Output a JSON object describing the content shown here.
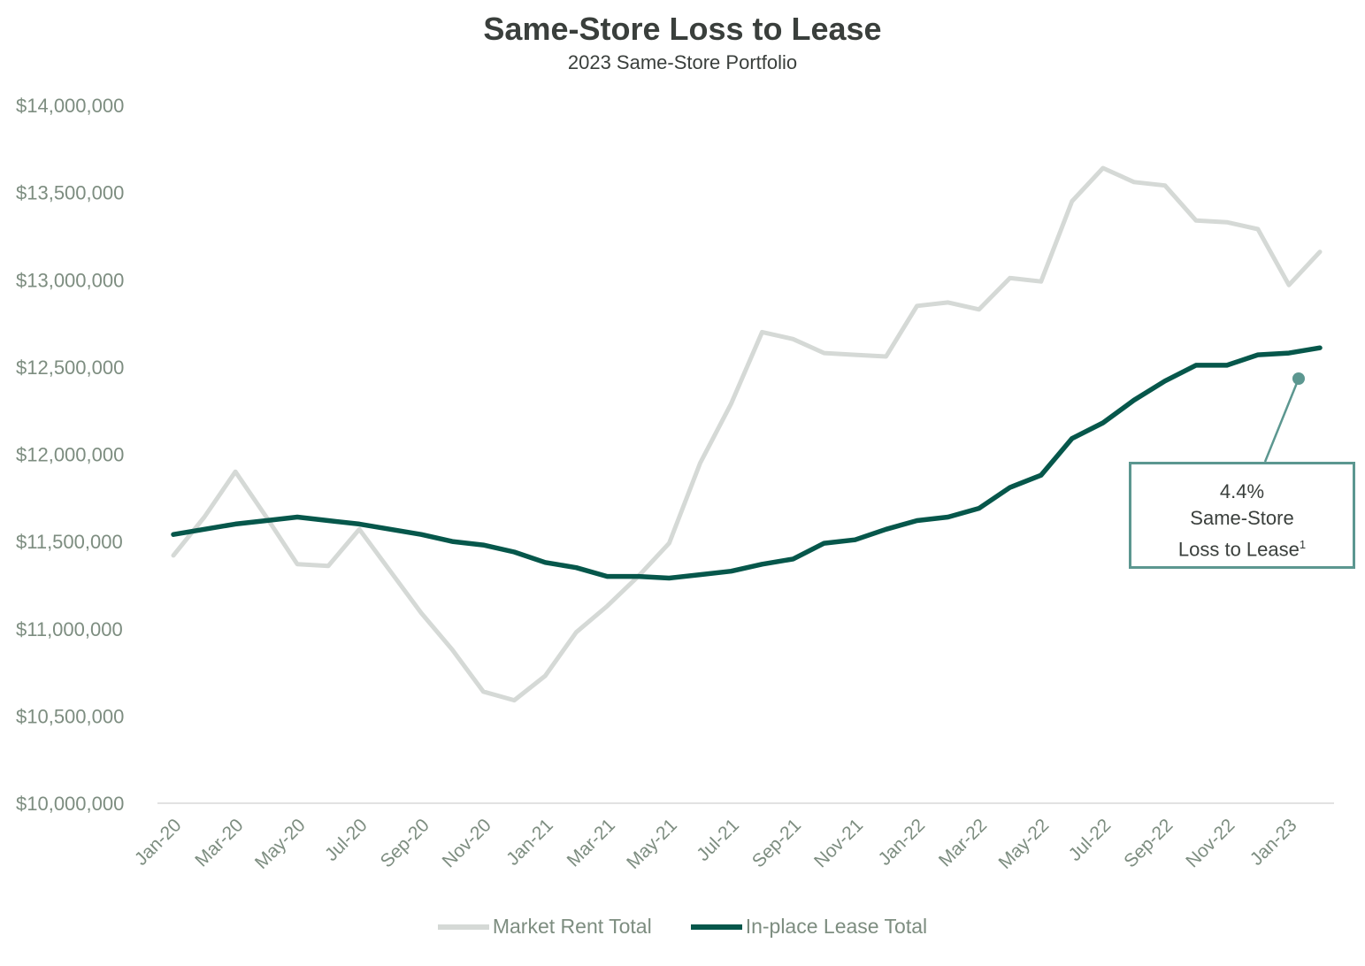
{
  "title": "Same-Store Loss to Lease",
  "subtitle": "2023 Same-Store Portfolio",
  "chart_data": {
    "type": "line",
    "title": "Same-Store Loss to Lease",
    "subtitle": "2023 Same-Store Portfolio",
    "xlabel": "",
    "ylabel": "",
    "ylim": [
      10000000,
      14000000
    ],
    "y_ticks": [
      "$10,000,000",
      "$10,500,000",
      "$11,000,000",
      "$11,500,000",
      "$12,000,000",
      "$12,500,000",
      "$13,000,000",
      "$13,500,000",
      "$14,000,000"
    ],
    "x_tick_labels": [
      "Jan-20",
      "Mar-20",
      "May-20",
      "Jul-20",
      "Sep-20",
      "Nov-20",
      "Jan-21",
      "Mar-21",
      "May-21",
      "Jul-21",
      "Sep-21",
      "Nov-21",
      "Jan-22",
      "Mar-22",
      "May-22",
      "Jul-22",
      "Sep-22",
      "Nov-22",
      "Jan-23"
    ],
    "x": [
      "Jan-20",
      "Feb-20",
      "Mar-20",
      "Apr-20",
      "May-20",
      "Jun-20",
      "Jul-20",
      "Aug-20",
      "Sep-20",
      "Oct-20",
      "Nov-20",
      "Dec-20",
      "Jan-21",
      "Feb-21",
      "Mar-21",
      "Apr-21",
      "May-21",
      "Jun-21",
      "Jul-21",
      "Aug-21",
      "Sep-21",
      "Oct-21",
      "Nov-21",
      "Dec-21",
      "Jan-22",
      "Feb-22",
      "Mar-22",
      "Apr-22",
      "May-22",
      "Jun-22",
      "Jul-22",
      "Aug-22",
      "Sep-22",
      "Oct-22",
      "Nov-22",
      "Dec-22",
      "Jan-23",
      "Feb-23"
    ],
    "series": [
      {
        "name": "Market Rent Total",
        "color": "#d5d9d6",
        "values": [
          11420000,
          11640000,
          11900000,
          11640000,
          11370000,
          11360000,
          11570000,
          11330000,
          11090000,
          10880000,
          10640000,
          10590000,
          10730000,
          10980000,
          11130000,
          11300000,
          11490000,
          11950000,
          12290000,
          12700000,
          12660000,
          12580000,
          12570000,
          12560000,
          12850000,
          12870000,
          12830000,
          13010000,
          12990000,
          13450000,
          13640000,
          13560000,
          13540000,
          13340000,
          13330000,
          13290000,
          12970000,
          13160000
        ]
      },
      {
        "name": "In-place Lease Total",
        "color": "#06574b",
        "values": [
          11540000,
          11570000,
          11600000,
          11620000,
          11640000,
          11620000,
          11600000,
          11570000,
          11540000,
          11500000,
          11480000,
          11440000,
          11380000,
          11350000,
          11300000,
          11300000,
          11290000,
          11310000,
          11330000,
          11370000,
          11400000,
          11490000,
          11510000,
          11570000,
          11620000,
          11640000,
          11690000,
          11810000,
          11880000,
          12090000,
          12180000,
          12310000,
          12420000,
          12510000,
          12510000,
          12570000,
          12580000,
          12610000
        ]
      }
    ],
    "grid": false,
    "legend_position": "bottom",
    "annotation": {
      "line1": "4.4%",
      "line2": "Same-Store",
      "line3": "Loss to Lease",
      "superscript": "1",
      "marker_color": "#5c9790"
    }
  }
}
